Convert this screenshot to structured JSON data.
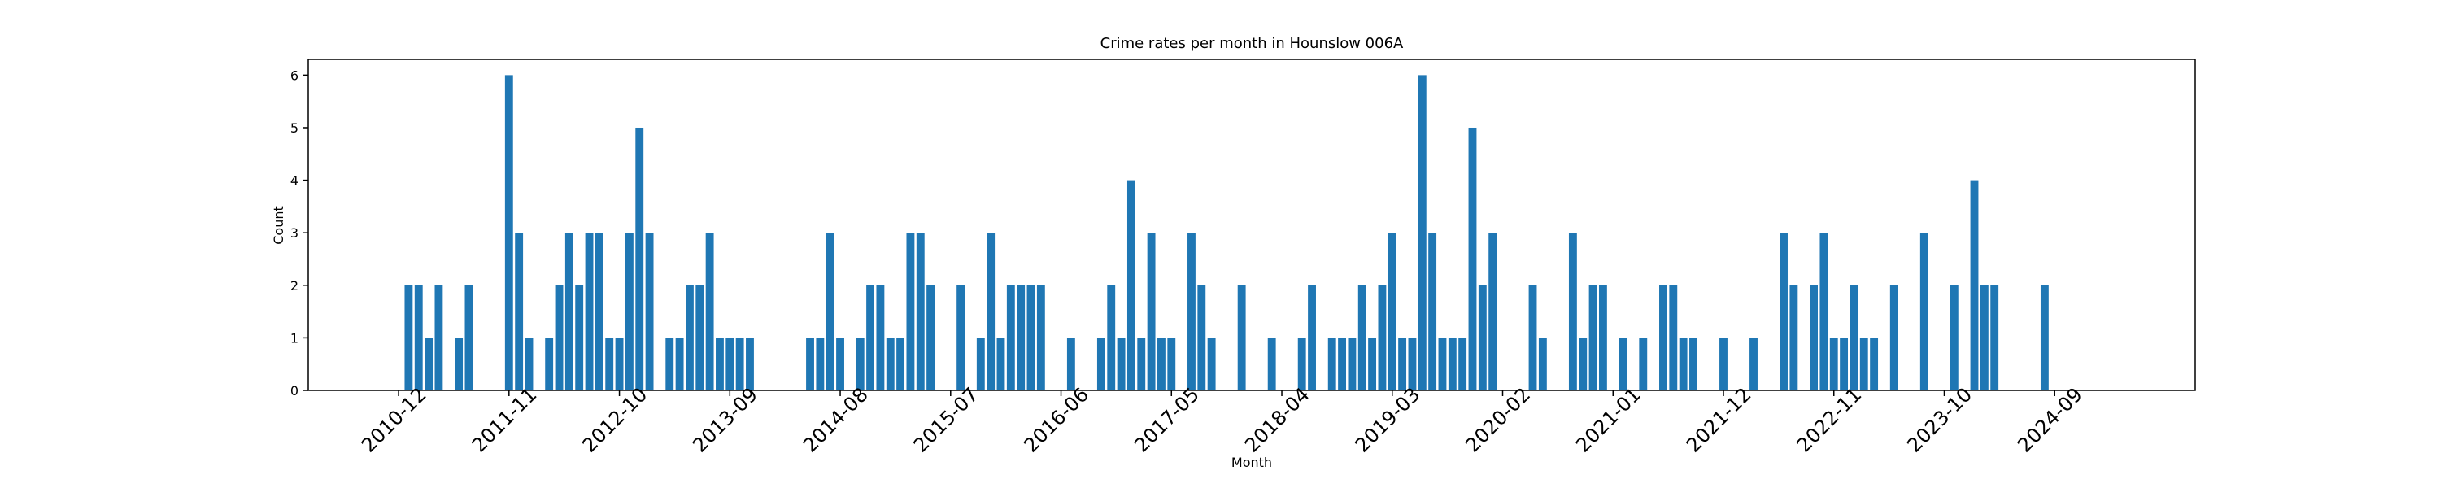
{
  "chart_data": {
    "type": "bar",
    "title": "Crime rates per month in Hounslow 006A",
    "xlabel": "Month",
    "ylabel": "Count",
    "color": "#1f77b4",
    "x": [
      "2011-01",
      "2011-02",
      "2011-03",
      "2011-04",
      "2011-06",
      "2011-07",
      "2011-11",
      "2011-12",
      "2012-01",
      "2012-03",
      "2012-04",
      "2012-05",
      "2012-06",
      "2012-07",
      "2012-08",
      "2012-09",
      "2012-10",
      "2012-11",
      "2012-12",
      "2013-01",
      "2013-03",
      "2013-04",
      "2013-05",
      "2013-06",
      "2013-07",
      "2013-08",
      "2013-09",
      "2013-10",
      "2013-11",
      "2014-05",
      "2014-06",
      "2014-07",
      "2014-08",
      "2014-10",
      "2014-11",
      "2014-12",
      "2015-01",
      "2015-02",
      "2015-03",
      "2015-04",
      "2015-05",
      "2015-08",
      "2015-10",
      "2015-11",
      "2015-12",
      "2016-01",
      "2016-02",
      "2016-03",
      "2016-04",
      "2016-07",
      "2016-10",
      "2016-11",
      "2016-12",
      "2017-01",
      "2017-02",
      "2017-03",
      "2017-04",
      "2017-05",
      "2017-07",
      "2017-08",
      "2017-09",
      "2017-12",
      "2018-03",
      "2018-06",
      "2018-07",
      "2018-09",
      "2018-10",
      "2018-11",
      "2018-12",
      "2019-01",
      "2019-02",
      "2019-03",
      "2019-04",
      "2019-05",
      "2019-06",
      "2019-07",
      "2019-08",
      "2019-09",
      "2019-10",
      "2019-11",
      "2019-12",
      "2020-01",
      "2020-05",
      "2020-06",
      "2020-09",
      "2020-10",
      "2020-11",
      "2020-12",
      "2021-02",
      "2021-04",
      "2021-06",
      "2021-07",
      "2021-08",
      "2021-09",
      "2021-12",
      "2022-03",
      "2022-06",
      "2022-07",
      "2022-09",
      "2022-10",
      "2022-11",
      "2022-12",
      "2023-01",
      "2023-02",
      "2023-03",
      "2023-05",
      "2023-08",
      "2023-11",
      "2024-01",
      "2024-02",
      "2024-03",
      "2024-08"
    ],
    "values": [
      2,
      2,
      1,
      2,
      1,
      2,
      6,
      3,
      1,
      1,
      2,
      3,
      2,
      3,
      3,
      1,
      1,
      3,
      5,
      3,
      1,
      1,
      2,
      2,
      3,
      1,
      1,
      1,
      1,
      1,
      1,
      3,
      1,
      1,
      2,
      2,
      1,
      1,
      3,
      3,
      2,
      2,
      1,
      3,
      1,
      2,
      2,
      2,
      2,
      1,
      1,
      2,
      1,
      4,
      1,
      3,
      1,
      1,
      3,
      2,
      1,
      2,
      1,
      1,
      2,
      1,
      1,
      1,
      2,
      1,
      2,
      3,
      1,
      1,
      6,
      3,
      1,
      1,
      1,
      5,
      2,
      3,
      2,
      1,
      3,
      1,
      2,
      2,
      1,
      1,
      2,
      2,
      1,
      1,
      1,
      1,
      3,
      2,
      2,
      3,
      1,
      1,
      2,
      1,
      1,
      2,
      3,
      2,
      4,
      2,
      2,
      2
    ],
    "xlim": [
      "2010-03",
      "2025-11"
    ],
    "xticks": [
      "2010-12",
      "2011-11",
      "2012-10",
      "2013-09",
      "2014-08",
      "2015-07",
      "2016-06",
      "2017-05",
      "2018-04",
      "2019-03",
      "2020-02",
      "2021-01",
      "2021-12",
      "2022-11",
      "2023-10",
      "2024-09"
    ],
    "ylim": [
      0,
      6.3
    ],
    "yticks": [
      0,
      1,
      2,
      3,
      4,
      5,
      6
    ]
  }
}
